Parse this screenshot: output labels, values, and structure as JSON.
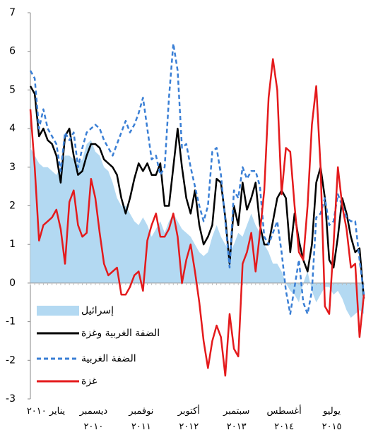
{
  "chart_data": {
    "type": "line",
    "categories": [
      "يناير ٢٠١٠",
      null,
      null,
      null,
      null,
      null,
      null,
      null,
      null,
      null,
      null,
      "ديسمبر ٢٠١٠",
      null,
      null,
      null,
      null,
      null,
      null,
      null,
      null,
      null,
      null,
      "نوفمبر ٢٠١١",
      null,
      null,
      null,
      null,
      null,
      null,
      null,
      null,
      null,
      null,
      "أكتوبر ٢٠١٢",
      null,
      null,
      null,
      null,
      null,
      null,
      null,
      null,
      null,
      null,
      "سبتمبر ٢٠١٣",
      null,
      null,
      null,
      null,
      null,
      null,
      null,
      null,
      null,
      null,
      "أغسطس ٢٠١٤",
      null,
      null,
      null,
      null,
      null,
      null,
      null,
      null,
      null,
      null,
      "يوليو ٢٠١٥",
      null,
      null,
      null,
      null,
      null,
      null,
      null,
      null,
      null,
      null,
      null
    ],
    "series": [
      {
        "name": "إسرائيل",
        "type": "area",
        "color": "#b3d9f2",
        "values": [
          3.5,
          3.3,
          3.1,
          3.0,
          3.0,
          2.9,
          2.8,
          3.0,
          3.3,
          3.3,
          3.2,
          3.1,
          3.2,
          3.6,
          3.7,
          3.4,
          3.3,
          3.0,
          2.9,
          2.6,
          2.2,
          2.0,
          2.0,
          1.8,
          1.6,
          1.5,
          1.7,
          1.5,
          1.2,
          1.4,
          1.6,
          1.3,
          1.6,
          1.8,
          1.6,
          1.4,
          1.3,
          1.2,
          1.0,
          0.8,
          0.7,
          0.8,
          1.2,
          1.5,
          1.2,
          1.0,
          0.8,
          1.0,
          1.3,
          1.2,
          1.5,
          1.8,
          1.5,
          1.3,
          1.0,
          0.8,
          0.5,
          0.5,
          0.3,
          0.0,
          -0.2,
          -0.3,
          -0.5,
          0.0,
          0.3,
          -0.2,
          -0.5,
          -0.3,
          -0.1,
          -0.1,
          -0.3,
          -0.2,
          -0.4,
          -0.7,
          -0.9,
          -0.8,
          -0.7,
          -0.8
        ]
      },
      {
        "name": "الضفة الغربية وغزة",
        "type": "line",
        "color": "#000000",
        "values": [
          5.1,
          4.9,
          3.8,
          4.0,
          3.7,
          3.6,
          3.3,
          2.6,
          3.8,
          4.0,
          3.3,
          2.8,
          2.9,
          3.3,
          3.6,
          3.6,
          3.5,
          3.2,
          3.1,
          3.0,
          2.8,
          2.2,
          1.8,
          2.2,
          2.7,
          3.1,
          2.9,
          3.1,
          2.8,
          2.8,
          3.1,
          2.0,
          2.0,
          3.0,
          4.0,
          3.0,
          2.2,
          1.8,
          2.4,
          1.5,
          1.0,
          1.2,
          1.5,
          2.7,
          2.6,
          1.7,
          0.5,
          2.0,
          1.5,
          2.6,
          1.9,
          2.2,
          2.6,
          1.5,
          1.0,
          1.0,
          1.6,
          2.2,
          2.4,
          2.2,
          0.8,
          1.8,
          1.1,
          0.6,
          0.3,
          1.0,
          2.6,
          3.0,
          2.2,
          0.6,
          0.4,
          1.2,
          2.2,
          1.8,
          1.2,
          0.8,
          0.9,
          -0.4
        ]
      },
      {
        "name": "الضفة الغربية",
        "type": "line",
        "dashed": true,
        "color": "#3a7fd5",
        "values": [
          5.5,
          5.3,
          4.0,
          4.5,
          4.0,
          3.8,
          3.6,
          2.9,
          3.9,
          3.7,
          3.9,
          3.0,
          3.5,
          3.9,
          4.0,
          4.1,
          4.0,
          3.7,
          3.5,
          3.3,
          3.6,
          3.9,
          4.2,
          3.9,
          4.1,
          4.4,
          4.8,
          4.0,
          3.2,
          3.3,
          2.8,
          3.0,
          4.8,
          6.2,
          5.5,
          3.5,
          3.6,
          3.0,
          2.5,
          2.0,
          1.6,
          2.0,
          3.4,
          3.5,
          2.8,
          1.6,
          0.4,
          2.4,
          2.2,
          3.0,
          2.7,
          2.9,
          2.9,
          2.5,
          1.2,
          1.0,
          1.3,
          1.6,
          0.8,
          -0.2,
          -0.8,
          -0.1,
          0.6,
          -0.5,
          -0.8,
          -0.2,
          1.7,
          1.8,
          2.2,
          1.5,
          1.6,
          2.3,
          2.0,
          1.7,
          1.6,
          1.6,
          0.6,
          -0.3
        ]
      },
      {
        "name": "غزة",
        "type": "line",
        "color": "#e41a1c",
        "values": [
          4.5,
          3.0,
          1.1,
          1.5,
          1.6,
          1.7,
          1.9,
          1.4,
          0.5,
          2.1,
          2.4,
          1.5,
          1.2,
          1.3,
          2.7,
          2.2,
          1.3,
          0.5,
          0.2,
          0.3,
          0.4,
          -0.3,
          -0.3,
          -0.1,
          0.2,
          0.3,
          -0.2,
          1.1,
          1.5,
          1.8,
          1.2,
          1.2,
          1.4,
          1.8,
          1.2,
          0.0,
          0.6,
          1.0,
          0.3,
          -0.5,
          -1.5,
          -2.2,
          -1.5,
          -1.1,
          -1.4,
          -2.4,
          -0.8,
          -1.7,
          -1.9,
          0.5,
          0.8,
          1.3,
          0.3,
          1.3,
          2.4,
          4.8,
          5.8,
          5.0,
          2.3,
          3.5,
          3.4,
          2.0,
          0.8,
          0.6,
          2.0,
          4.1,
          5.1,
          3.0,
          -0.6,
          -0.8,
          1.0,
          3.0,
          2.0,
          1.4,
          0.4,
          0.5,
          -1.4,
          -0.3
        ]
      }
    ],
    "ylim": [
      -3,
      7
    ],
    "yticks": [
      -3,
      -2,
      -1,
      0,
      1,
      2,
      3,
      4,
      5,
      6,
      7
    ],
    "legend": "lower-left"
  }
}
